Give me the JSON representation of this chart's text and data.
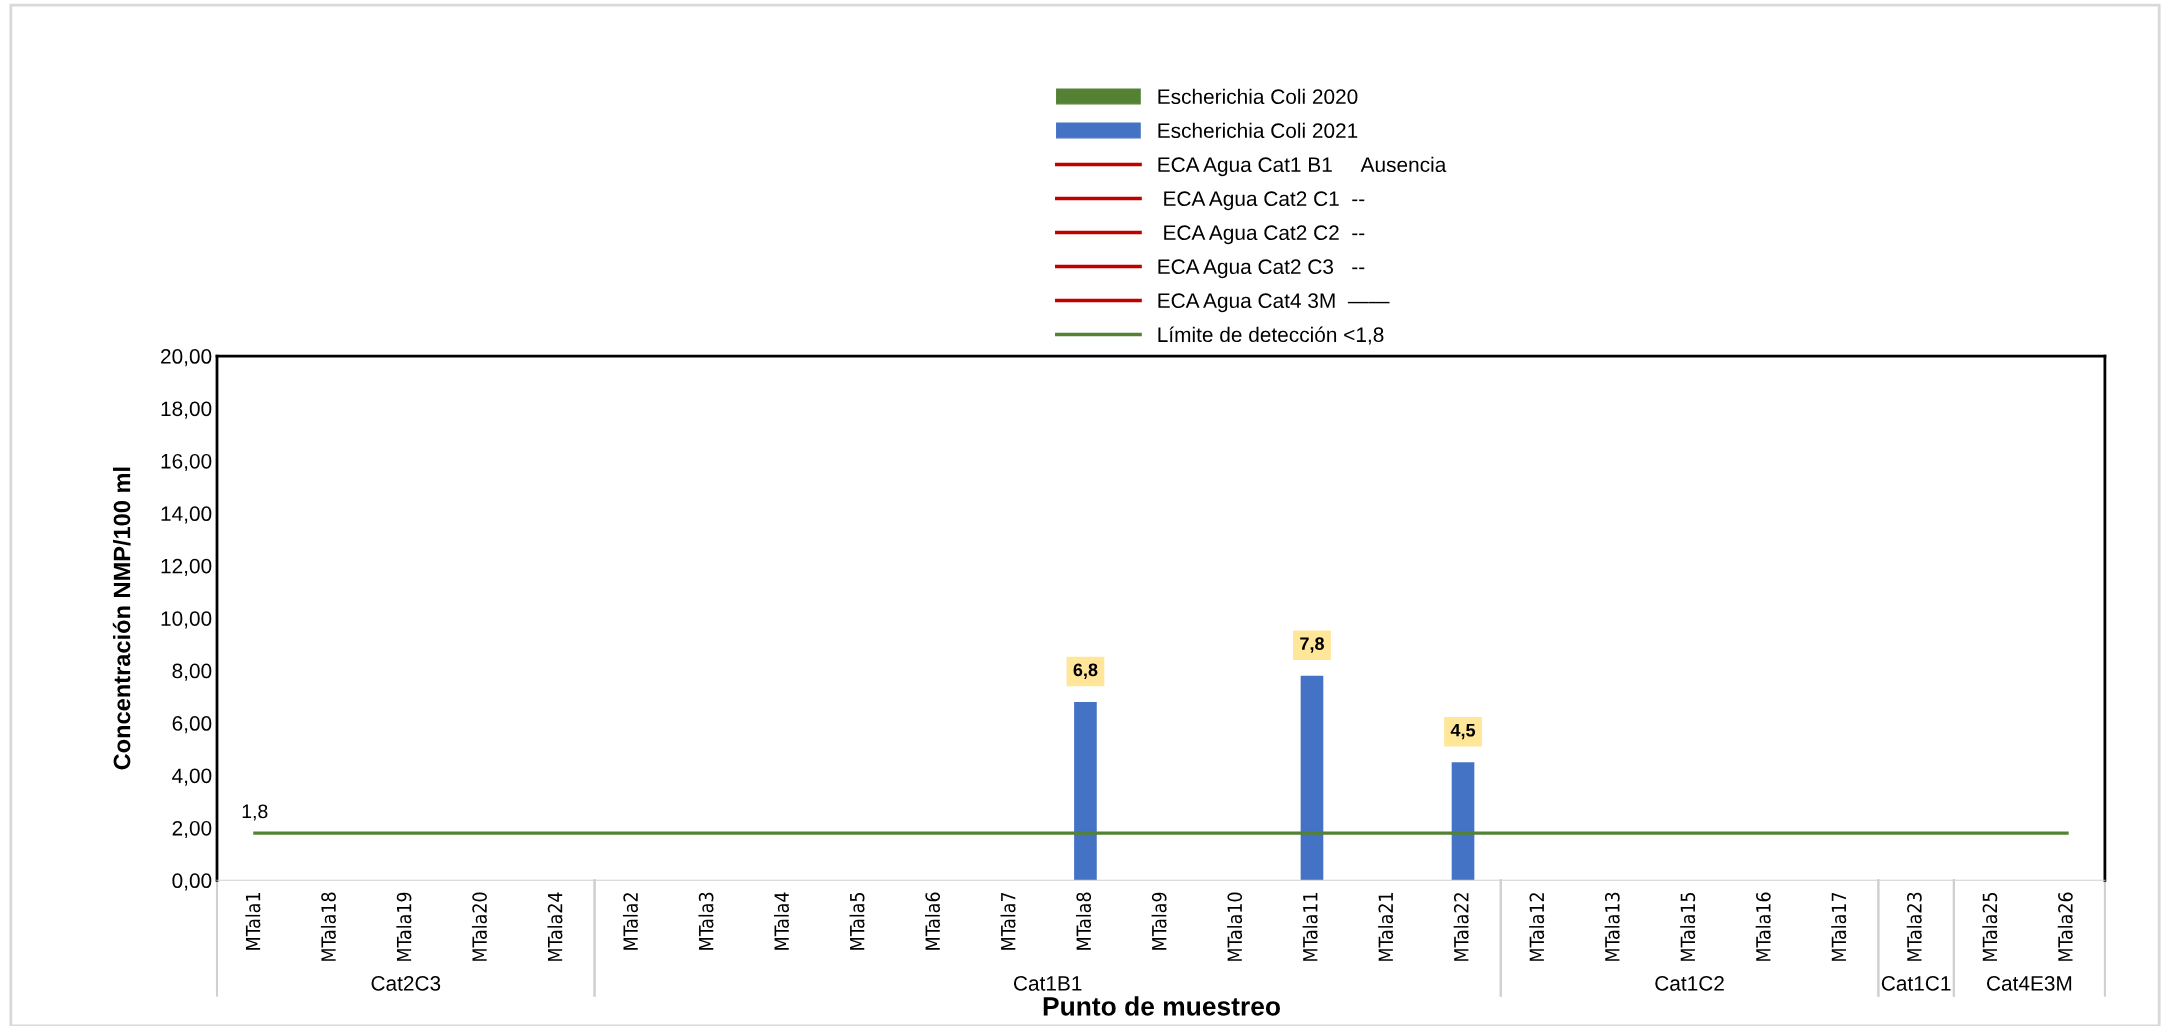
{
  "chart_data": {
    "type": "bar",
    "categories": [
      "MTala1",
      "MTala18",
      "MTala19",
      "MTala20",
      "MTala24",
      "MTala2",
      "MTala3",
      "MTala4",
      "MTala5",
      "MTala6",
      "MTala7",
      "MTala8",
      "MTala9",
      "MTala10",
      "MTala11",
      "MTala21",
      "MTala22",
      "MTala12",
      "MTala13",
      "MTala15",
      "MTala16",
      "MTala17",
      "MTala23",
      "MTala25",
      "MTala26"
    ],
    "series": [
      {
        "name": "Escherichia Coli 2020",
        "color": "#548235",
        "values": [
          null,
          null,
          null,
          null,
          null,
          null,
          null,
          null,
          null,
          null,
          null,
          null,
          null,
          null,
          null,
          null,
          null,
          null,
          null,
          null,
          null,
          null,
          null,
          null,
          null
        ]
      },
      {
        "name": "Escherichia Coli 2021",
        "color": "#4472c4",
        "values": [
          null,
          null,
          null,
          null,
          null,
          null,
          null,
          null,
          null,
          null,
          null,
          6.8,
          null,
          null,
          7.8,
          null,
          4.5,
          null,
          null,
          null,
          null,
          null,
          null,
          null,
          null
        ],
        "value_labels": [
          null,
          null,
          null,
          null,
          null,
          null,
          null,
          null,
          null,
          null,
          null,
          "6,8",
          null,
          null,
          "7,8",
          null,
          "4,5",
          null,
          null,
          null,
          null,
          null,
          null,
          null,
          null
        ]
      },
      {
        "name": "ECA Agua Cat1 B1     Ausencia",
        "type": "line",
        "color": "#c00000",
        "values": [
          null,
          null,
          null,
          null,
          null,
          null,
          null,
          null,
          null,
          null,
          null,
          null,
          null,
          null,
          null,
          null,
          null,
          null,
          null,
          null,
          null,
          null,
          null,
          null,
          null
        ]
      },
      {
        "name": " ECA Agua Cat2 C1  --",
        "type": "line",
        "color": "#c00000",
        "values": [
          null,
          null,
          null,
          null,
          null,
          null,
          null,
          null,
          null,
          null,
          null,
          null,
          null,
          null,
          null,
          null,
          null,
          null,
          null,
          null,
          null,
          null,
          null,
          null,
          null
        ]
      },
      {
        "name": " ECA Agua Cat2 C2  --",
        "type": "line",
        "color": "#c00000",
        "values": [
          null,
          null,
          null,
          null,
          null,
          null,
          null,
          null,
          null,
          null,
          null,
          null,
          null,
          null,
          null,
          null,
          null,
          null,
          null,
          null,
          null,
          null,
          null,
          null,
          null
        ]
      },
      {
        "name": "ECA Agua Cat2 C3   --",
        "type": "line",
        "color": "#c00000",
        "values": [
          null,
          null,
          null,
          null,
          null,
          null,
          null,
          null,
          null,
          null,
          null,
          null,
          null,
          null,
          null,
          null,
          null,
          null,
          null,
          null,
          null,
          null,
          null,
          null,
          null
        ]
      },
      {
        "name": "ECA Agua Cat4 3M  ——",
        "type": "line",
        "color": "#c00000",
        "values": [
          null,
          null,
          null,
          null,
          null,
          null,
          null,
          null,
          null,
          null,
          null,
          null,
          null,
          null,
          null,
          null,
          null,
          null,
          null,
          null,
          null,
          null,
          null,
          null,
          null
        ]
      },
      {
        "name": "Límite de detección <1,8",
        "type": "line",
        "color": "#548235",
        "values": [
          1.8,
          1.8,
          1.8,
          1.8,
          1.8,
          1.8,
          1.8,
          1.8,
          1.8,
          1.8,
          1.8,
          1.8,
          1.8,
          1.8,
          1.8,
          1.8,
          1.8,
          1.8,
          1.8,
          1.8,
          1.8,
          1.8,
          1.8,
          1.8,
          1.8
        ],
        "value_labels": [
          "1,8",
          null,
          null,
          null,
          null,
          null,
          null,
          null,
          null,
          null,
          null,
          null,
          null,
          null,
          null,
          null,
          null,
          null,
          null,
          null,
          null,
          null,
          null,
          null,
          null
        ]
      }
    ],
    "annotations": [
      "Cat2C3",
      "Cat1B1",
      "Cat1C2",
      "Cat1C1",
      "Cat4E3M"
    ],
    "xlabel": "Punto de muestreo",
    "ylabel": "Concentración NMP/100 ml",
    "ylim": [
      0,
      20
    ],
    "yticks": [
      {
        "value": 0,
        "label": "0,00"
      },
      {
        "value": 2,
        "label": "2,00"
      },
      {
        "value": 4,
        "label": "4,00"
      },
      {
        "value": 6,
        "label": "6,00"
      },
      {
        "value": 8,
        "label": "8,00"
      },
      {
        "value": 10,
        "label": "10,00"
      },
      {
        "value": 12,
        "label": "12,00"
      },
      {
        "value": 14,
        "label": "14,00"
      },
      {
        "value": 16,
        "label": "16,00"
      },
      {
        "value": 18,
        "label": "18,00"
      },
      {
        "value": 20,
        "label": "20,00"
      }
    ],
    "grid": false,
    "legend": "top"
  }
}
